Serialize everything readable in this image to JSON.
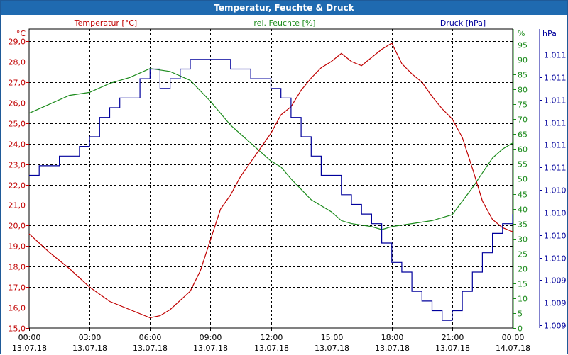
{
  "window": {
    "title": "Temperatur, Feuchte & Druck"
  },
  "colors": {
    "temperature": "#c00000",
    "humidity": "#1a8a1a",
    "pressure": "#00009c",
    "grid": "#000000",
    "title_bar": "#1f6ab0"
  },
  "chart_data": {
    "type": "line",
    "title": "Temperatur, Feuchte & Druck",
    "x_unit": "hours since 13.07.18 00:00",
    "x_range": [
      0,
      24
    ],
    "x_ticks": [
      {
        "time": "00:00",
        "date": "13.07.18"
      },
      {
        "time": "03:00",
        "date": "13.07.18"
      },
      {
        "time": "06:00",
        "date": "13.07.18"
      },
      {
        "time": "09:00",
        "date": "13.07.18"
      },
      {
        "time": "12:00",
        "date": "13.07.18"
      },
      {
        "time": "15:00",
        "date": "13.07.18"
      },
      {
        "time": "18:00",
        "date": "13.07.18"
      },
      {
        "time": "21:00",
        "date": "13.07.18"
      },
      {
        "time": "00:00",
        "date": "14.07.18"
      }
    ],
    "axes": {
      "left": {
        "unit_label": "°C",
        "ylim": [
          15,
          29
        ],
        "ticks": [
          "15,0",
          "16,0",
          "17,0",
          "18,0",
          "19,0",
          "20,0",
          "21,0",
          "22,0",
          "23,0",
          "24,0",
          "25,0",
          "26,0",
          "27,0",
          "28,0",
          "29,0"
        ]
      },
      "right_humidity": {
        "unit_label": "%",
        "ylim": [
          0,
          95
        ],
        "ticks": [
          "0",
          "5",
          "10",
          "15",
          "20",
          "25",
          "30",
          "35",
          "40",
          "45",
          "50",
          "55",
          "60",
          "65",
          "70",
          "75",
          "80",
          "85",
          "90",
          "95"
        ]
      },
      "right_pressure": {
        "unit_label": "hPa",
        "ticks": [
          "1.009",
          "1.009",
          "1.009",
          "1.010",
          "1.010",
          "1.010",
          "1.010",
          "1.011",
          "1.011",
          "1.011",
          "1.011",
          "1.011",
          "1.011"
        ]
      }
    },
    "series": [
      {
        "name": "Temperatur [°C]",
        "axis": "left",
        "x": [
          0,
          1,
          2,
          3,
          4,
          5,
          6,
          6.5,
          7,
          8,
          8.5,
          9,
          9.5,
          10,
          10.5,
          11,
          11.5,
          12,
          12.5,
          13,
          13.5,
          14,
          14.5,
          15,
          15.5,
          16,
          16.5,
          17,
          17.5,
          18,
          18.5,
          19,
          19.5,
          20,
          20.5,
          21,
          21.5,
          22,
          22.5,
          23,
          23.5,
          24
        ],
        "values": [
          19.6,
          18.7,
          17.9,
          17.0,
          16.3,
          15.9,
          15.5,
          15.6,
          15.9,
          16.8,
          17.8,
          19.3,
          20.8,
          21.5,
          22.4,
          23.1,
          23.8,
          24.5,
          25.4,
          25.8,
          26.6,
          27.2,
          27.7,
          28.0,
          28.4,
          28.0,
          27.8,
          28.2,
          28.6,
          28.9,
          27.9,
          27.4,
          27.0,
          26.3,
          25.7,
          25.2,
          24.3,
          22.8,
          21.2,
          20.3,
          19.9,
          19.7
        ]
      },
      {
        "name": "rel. Feuchte [%]",
        "axis": "right_humidity",
        "x": [
          0,
          1,
          2,
          3,
          4,
          5,
          6,
          7,
          8,
          9,
          10,
          11,
          12,
          12.5,
          13,
          14,
          15,
          15.5,
          16,
          17,
          17.5,
          18,
          19,
          20,
          21,
          22,
          22.5,
          23,
          23.5,
          24
        ],
        "values": [
          72,
          75,
          78,
          79,
          82,
          84,
          87,
          86,
          83,
          76,
          68,
          62,
          56,
          54,
          50,
          43,
          39,
          36,
          35,
          34,
          33,
          34,
          35,
          36,
          38,
          47,
          52,
          57,
          60,
          62
        ]
      },
      {
        "name": "Druck [hPa]",
        "axis": "right_pressure",
        "x": [
          0,
          0.5,
          1,
          1.5,
          2,
          2.5,
          3,
          3.5,
          4,
          4.5,
          5,
          5.5,
          6,
          6.5,
          7,
          7.5,
          8,
          8.5,
          9,
          9.5,
          10,
          10.5,
          11,
          11.5,
          12,
          12.5,
          13,
          13.5,
          14,
          14.5,
          15,
          15.5,
          16,
          16.5,
          17,
          17.5,
          18,
          18.5,
          19,
          19.5,
          20,
          20.5,
          21,
          21.5,
          22,
          22.5,
          23,
          23.5,
          24
        ],
        "values": [
          1010.2,
          1010.3,
          1010.3,
          1010.4,
          1010.4,
          1010.5,
          1010.6,
          1010.8,
          1010.9,
          1011.0,
          1011.0,
          1011.2,
          1011.3,
          1011.1,
          1011.2,
          1011.3,
          1011.4,
          1011.4,
          1011.4,
          1011.4,
          1011.3,
          1011.3,
          1011.2,
          1011.2,
          1011.1,
          1011.0,
          1010.8,
          1010.6,
          1010.4,
          1010.2,
          1010.2,
          1010.0,
          1009.9,
          1009.8,
          1009.7,
          1009.5,
          1009.3,
          1009.2,
          1009.0,
          1008.9,
          1008.8,
          1008.7,
          1008.8,
          1009.0,
          1009.2,
          1009.4,
          1009.6,
          1009.7,
          1009.8
        ]
      }
    ]
  }
}
